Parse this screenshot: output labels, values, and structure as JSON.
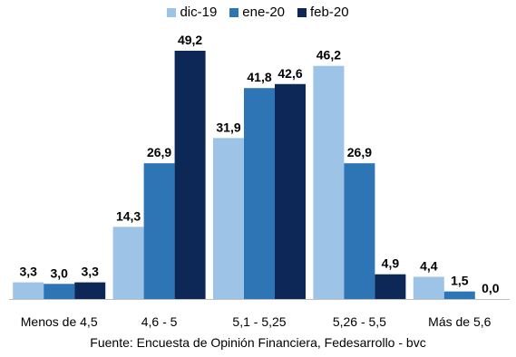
{
  "chart_data": {
    "type": "bar",
    "categories": [
      "Menos de 4,5",
      "4,6 - 5",
      "5,1 - 5,25",
      "5,26 - 5,5",
      "Más de 5,6"
    ],
    "series": [
      {
        "name": "dic-19",
        "color": "#9dc3e6",
        "values": [
          3.3,
          14.3,
          31.9,
          46.2,
          4.4
        ],
        "labels": [
          "3,3",
          "14,3",
          "31,9",
          "46,2",
          "4,4"
        ]
      },
      {
        "name": "ene-20",
        "color": "#2e75b6",
        "values": [
          3.0,
          26.9,
          41.8,
          26.9,
          1.5
        ],
        "labels": [
          "3,0",
          "26,9",
          "41,8",
          "26,9",
          "1,5"
        ]
      },
      {
        "name": "feb-20",
        "color": "#0d2757",
        "values": [
          3.3,
          49.2,
          42.6,
          4.9,
          0.0
        ],
        "labels": [
          "3,3",
          "49,2",
          "42,6",
          "4,9",
          "0,0"
        ]
      }
    ],
    "ylim": [
      0,
      49.2
    ],
    "grid": false,
    "legend_position": "top"
  },
  "source": "Fuente: Encuesta de Opinión Financiera, Fedesarrollo - bvc"
}
